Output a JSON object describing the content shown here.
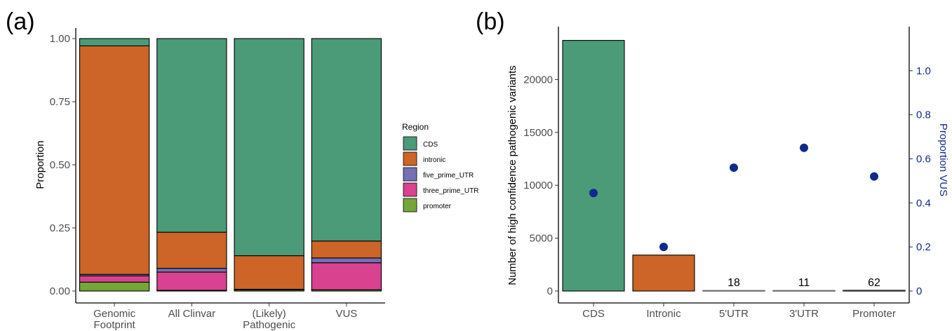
{
  "chart_data": [
    {
      "type": "bar",
      "stacked": true,
      "panel_label": "(a)",
      "title": "",
      "xlabel": "",
      "ylabel": "Proportion",
      "ylim": [
        0,
        1
      ],
      "yticks": [
        "0.00",
        "0.25",
        "0.50",
        "0.75",
        "1.00"
      ],
      "categories": [
        [
          "Genomic",
          "Footprint"
        ],
        [
          "All Clinvar"
        ],
        [
          "(Likely)",
          "Pathogenic"
        ],
        [
          "VUS"
        ]
      ],
      "series": [
        {
          "name": "promoter",
          "color": "#75a63a",
          "values": [
            0.035,
            0.003,
            0.005,
            0.005
          ]
        },
        {
          "name": "three_prime_UTR",
          "color": "#d9428e",
          "values": [
            0.025,
            0.072,
            0.001,
            0.107
          ]
        },
        {
          "name": "five_prime_UTR",
          "color": "#7570b3",
          "values": [
            0.006,
            0.015,
            0.001,
            0.019
          ]
        },
        {
          "name": "intronic",
          "color": "#cc6527",
          "values": [
            0.905,
            0.143,
            0.133,
            0.067
          ]
        },
        {
          "name": "CDS",
          "color": "#4b9a78",
          "values": [
            0.029,
            0.767,
            0.86,
            0.802
          ]
        }
      ],
      "legend": {
        "title": "Region",
        "position": "right",
        "items": [
          "CDS",
          "intronic",
          "five_prime_UTR",
          "three_prime_UTR",
          "promoter"
        ]
      },
      "grid": false
    },
    {
      "type": "bar",
      "panel_label": "(b)",
      "title": "",
      "xlabel": "",
      "ylabel": "Number of high confidence pathogenic variants",
      "ylim": [
        0,
        25000
      ],
      "yticks": [
        "0",
        "5000",
        "10000",
        "15000",
        "20000"
      ],
      "categories": [
        "CDS",
        "Intronic",
        "5'UTR",
        "3'UTR",
        "Promoter"
      ],
      "values": [
        23700,
        3400,
        18,
        11,
        62
      ],
      "bar_colors": [
        "#4b9a78",
        "#cc6527",
        "#666666",
        "#666666",
        "#333333"
      ],
      "data_labels": [
        "",
        "",
        "18",
        "11",
        "62"
      ],
      "secondary_axis": {
        "type": "scatter",
        "label": "Proportion VUS",
        "color": "#102a8c",
        "ylim": [
          0,
          1.2
        ],
        "yticks": [
          "0",
          "0.2",
          "0.4",
          "0.6",
          "0.8",
          "1.0"
        ],
        "values": [
          0.445,
          0.2,
          0.56,
          0.65,
          0.52
        ]
      },
      "grid": false
    }
  ]
}
